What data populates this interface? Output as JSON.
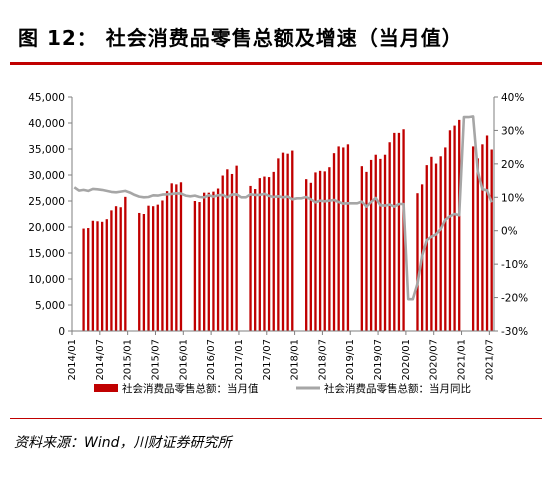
{
  "title": "图 12： 社会消费品零售总额及增速（当月值）",
  "source": "资料来源：Wind，川财证券研究所",
  "colors": {
    "bar": "#c00000",
    "line": "#a6a6a6",
    "accent": "#c00000"
  },
  "chart_data": {
    "type": "bar",
    "x": [
      "2014/01",
      "2014/02",
      "2014/03",
      "2014/04",
      "2014/05",
      "2014/06",
      "2014/07",
      "2014/08",
      "2014/09",
      "2014/10",
      "2014/11",
      "2014/12",
      "2015/01",
      "2015/02",
      "2015/03",
      "2015/04",
      "2015/05",
      "2015/06",
      "2015/07",
      "2015/08",
      "2015/09",
      "2015/10",
      "2015/11",
      "2015/12",
      "2016/01",
      "2016/02",
      "2016/03",
      "2016/04",
      "2016/05",
      "2016/06",
      "2016/07",
      "2016/08",
      "2016/09",
      "2016/10",
      "2016/11",
      "2016/12",
      "2017/01",
      "2017/02",
      "2017/03",
      "2017/04",
      "2017/05",
      "2017/06",
      "2017/07",
      "2017/08",
      "2017/09",
      "2017/10",
      "2017/11",
      "2017/12",
      "2018/01",
      "2018/02",
      "2018/03",
      "2018/04",
      "2018/05",
      "2018/06",
      "2018/07",
      "2018/08",
      "2018/09",
      "2018/10",
      "2018/11",
      "2018/12",
      "2019/01",
      "2019/02",
      "2019/03",
      "2019/04",
      "2019/05",
      "2019/06",
      "2019/07",
      "2019/08",
      "2019/09",
      "2019/10",
      "2019/11",
      "2019/12",
      "2020/01",
      "2020/02",
      "2020/03",
      "2020/04",
      "2020/05",
      "2020/06",
      "2020/07",
      "2020/08",
      "2020/09",
      "2020/10",
      "2020/11",
      "2020/12",
      "2021/01",
      "2021/02",
      "2021/03",
      "2021/04",
      "2021/05",
      "2021/06",
      "2021/07"
    ],
    "xticks": [
      "2014/01",
      "2014/07",
      "2015/01",
      "2015/07",
      "2016/01",
      "2016/07",
      "2017/01",
      "2017/07",
      "2018/01",
      "2018/07",
      "2019/01",
      "2019/07",
      "2020/01",
      "2020/07",
      "2021/01",
      "2021/07"
    ],
    "series": [
      {
        "name": "社会消费品零售总额：当月值",
        "type": "bar",
        "axis": "left",
        "values": [
          null,
          null,
          19700,
          19800,
          21200,
          21100,
          21000,
          21500,
          23200,
          24000,
          23800,
          25800,
          null,
          null,
          22700,
          22500,
          24100,
          24000,
          24300,
          25100,
          26900,
          28400,
          28200,
          28600,
          null,
          null,
          25000,
          24800,
          26600,
          26600,
          26800,
          27400,
          29900,
          31100,
          30200,
          31800,
          null,
          null,
          27900,
          27300,
          29400,
          29700,
          29600,
          30600,
          33200,
          34300,
          34100,
          34700,
          null,
          null,
          29200,
          28500,
          30500,
          30800,
          30700,
          31500,
          34200,
          35500,
          35300,
          35900,
          null,
          null,
          31700,
          30600,
          32900,
          33900,
          33100,
          33900,
          36300,
          38100,
          38100,
          38800,
          null,
          null,
          26500,
          28200,
          31900,
          33500,
          32200,
          33600,
          35300,
          38600,
          39500,
          40600,
          null,
          null,
          35500,
          33200,
          35900,
          37600,
          34900
        ]
      },
      {
        "name": "社会消费品零售总额：当月同比",
        "type": "line",
        "axis": "right",
        "values": [
          13.0,
          12.0,
          12.2,
          11.9,
          12.5,
          12.4,
          12.2,
          11.9,
          11.6,
          11.5,
          11.7,
          11.9,
          11.4,
          10.7,
          10.2,
          10.0,
          10.1,
          10.6,
          10.5,
          10.8,
          10.9,
          11.0,
          11.2,
          11.1,
          10.5,
          10.3,
          10.5,
          10.1,
          10.0,
          10.6,
          10.2,
          10.6,
          10.7,
          10.0,
          10.8,
          10.9,
          10.0,
          10.0,
          10.9,
          10.7,
          10.7,
          11.0,
          10.4,
          10.1,
          10.3,
          10.0,
          10.2,
          9.4,
          9.7,
          9.7,
          10.1,
          9.4,
          8.5,
          9.0,
          8.8,
          9.0,
          9.2,
          8.6,
          8.1,
          8.2,
          8.2,
          8.2,
          8.7,
          7.2,
          8.6,
          9.8,
          7.6,
          7.5,
          7.8,
          7.2,
          8.0,
          8.0,
          -20.5,
          -20.5,
          -15.8,
          -7.5,
          -2.8,
          -1.8,
          -1.1,
          0.5,
          3.3,
          4.3,
          5.0,
          4.6,
          34.0,
          34.0,
          34.2,
          17.7,
          12.4,
          12.1,
          8.5
        ]
      }
    ],
    "yleft": {
      "min": 0,
      "max": 45000,
      "step": 5000
    },
    "yright": {
      "min": -30,
      "max": 40,
      "step": 10,
      "suffix": "%"
    },
    "grid": false,
    "legend_position": "bottom"
  }
}
